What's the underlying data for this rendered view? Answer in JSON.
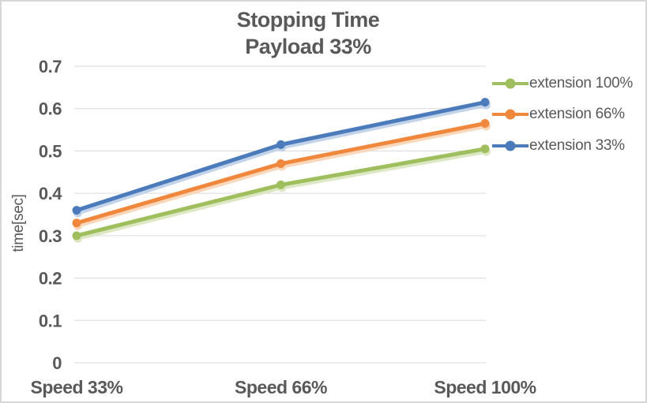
{
  "window": {
    "background": "#ffffff",
    "border_color": "#d7d7d7",
    "text_color": "#595959",
    "gridline_color": "#d9d9d9"
  },
  "chart_data": {
    "type": "line",
    "title": "Stopping Time",
    "subtitle": "Payload 33%",
    "ylabel": "time[sec]",
    "xlabel": "",
    "categories": [
      "Speed 33%",
      "Speed 66%",
      "Speed 100%"
    ],
    "series": [
      {
        "name": "extension 100%",
        "color": "#9fbf5f",
        "shadow_color": "#d9e6be",
        "values": [
          0.3,
          0.42,
          0.505
        ]
      },
      {
        "name": "extension 66%",
        "color": "#ef873d",
        "shadow_color": "#f9d3b3",
        "values": [
          0.33,
          0.47,
          0.565
        ]
      },
      {
        "name": "extension 33%",
        "color": "#4c7bbb",
        "shadow_color": "#bccfe8",
        "values": [
          0.36,
          0.515,
          0.615
        ]
      }
    ],
    "ylim": [
      0,
      0.7
    ],
    "ytick_step": 0.1,
    "ytick_labels": [
      "0",
      "0.1",
      "0.2",
      "0.3",
      "0.4",
      "0.5",
      "0.6",
      "0.7"
    ],
    "grid": true,
    "legend_position": "right",
    "marker": "circle"
  }
}
